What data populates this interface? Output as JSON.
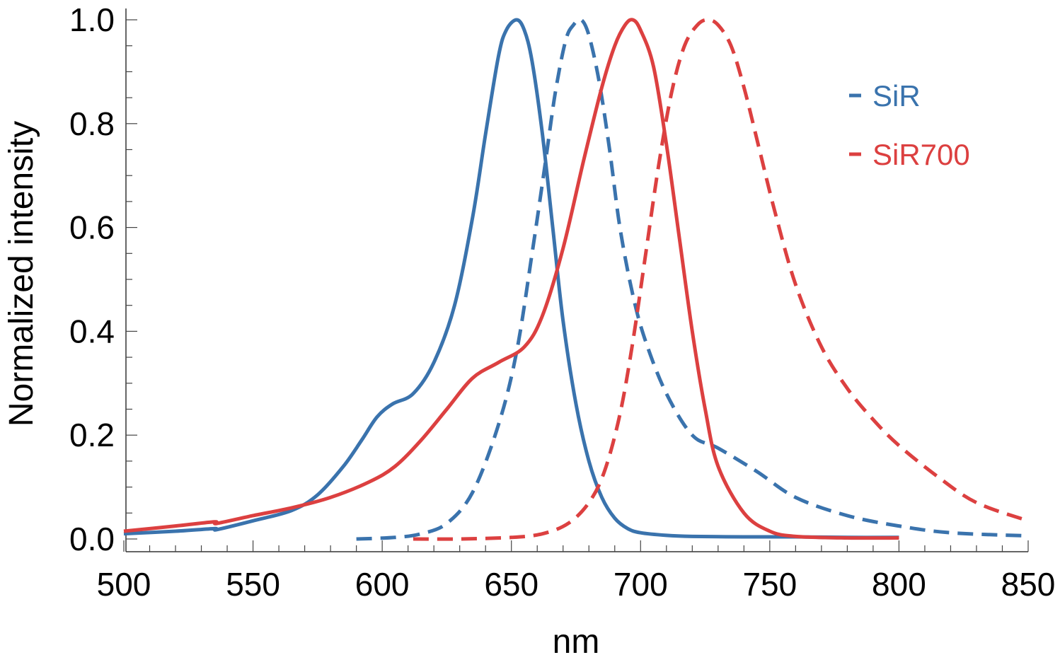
{
  "chart_data": {
    "type": "line",
    "title": "",
    "xlabel": "nm",
    "ylabel": "Normalized intensity",
    "xlim": [
      500,
      850
    ],
    "ylim": [
      0,
      1.0
    ],
    "xticks": [
      "500",
      "550",
      "600",
      "650",
      "700",
      "750",
      "800",
      "850"
    ],
    "yticks": [
      "0.0",
      "0.2",
      "0.4",
      "0.6",
      "0.8",
      "1.0"
    ],
    "grid": false,
    "legend": {
      "position": "top-right",
      "entries": [
        {
          "label": "SiR",
          "color": "#3a73ad"
        },
        {
          "label": "SiR700",
          "color": "#dc4040"
        }
      ]
    },
    "series": [
      {
        "legend_label": "SiR",
        "color": "#3a73ad",
        "dash": false,
        "x": [
          500,
          520,
          535,
          536,
          550,
          565,
          575,
          585,
          592,
          598,
          604,
          612,
          620,
          628,
          635,
          640,
          645,
          648,
          652,
          655,
          658,
          662,
          666,
          670,
          675,
          680,
          685,
          690,
          695,
          700,
          710,
          720,
          740,
          760,
          780,
          800
        ],
        "y": [
          0.01,
          0.015,
          0.02,
          0.018,
          0.035,
          0.055,
          0.085,
          0.14,
          0.19,
          0.235,
          0.26,
          0.28,
          0.34,
          0.45,
          0.62,
          0.78,
          0.93,
          0.98,
          1.0,
          0.98,
          0.92,
          0.78,
          0.6,
          0.42,
          0.26,
          0.15,
          0.08,
          0.04,
          0.02,
          0.012,
          0.007,
          0.005,
          0.004,
          0.004,
          0.003,
          0.003
        ]
      },
      {
        "legend_label": "SiR",
        "color": "#3a73ad",
        "dash": true,
        "x": [
          590,
          605,
          615,
          625,
          635,
          645,
          652,
          658,
          663,
          667,
          671,
          674,
          677,
          680,
          684,
          688,
          692,
          697,
          702,
          710,
          720,
          730,
          745,
          760,
          780,
          800,
          820,
          850
        ],
        "y": [
          0.0,
          0.003,
          0.01,
          0.03,
          0.09,
          0.22,
          0.36,
          0.55,
          0.72,
          0.86,
          0.96,
          0.99,
          1.0,
          0.97,
          0.88,
          0.75,
          0.6,
          0.47,
          0.38,
          0.28,
          0.2,
          0.175,
          0.13,
          0.08,
          0.045,
          0.025,
          0.012,
          0.006
        ]
      },
      {
        "legend_label": "SiR700",
        "color": "#dc4040",
        "dash": false,
        "x": [
          500,
          520,
          535,
          536,
          550,
          565,
          580,
          595,
          605,
          615,
          625,
          635,
          645,
          655,
          662,
          670,
          678,
          685,
          690,
          694,
          697,
          700,
          705,
          710,
          715,
          720,
          725,
          730,
          740,
          750,
          760,
          780,
          800
        ],
        "y": [
          0.015,
          0.025,
          0.033,
          0.03,
          0.045,
          0.06,
          0.08,
          0.11,
          0.14,
          0.19,
          0.25,
          0.31,
          0.34,
          0.37,
          0.43,
          0.56,
          0.73,
          0.87,
          0.95,
          0.99,
          1.0,
          0.98,
          0.91,
          0.76,
          0.58,
          0.4,
          0.25,
          0.14,
          0.05,
          0.015,
          0.005,
          0.002,
          0.002
        ]
      },
      {
        "legend_label": "SiR700",
        "color": "#dc4040",
        "dash": true,
        "x": [
          612,
          630,
          650,
          662,
          672,
          680,
          686,
          692,
          697,
          702,
          707,
          712,
          717,
          722,
          726,
          730,
          735,
          740,
          746,
          752,
          760,
          770,
          780,
          790,
          800,
          815,
          830,
          850
        ],
        "y": [
          0.0,
          0.0,
          0.003,
          0.01,
          0.03,
          0.07,
          0.13,
          0.24,
          0.38,
          0.55,
          0.72,
          0.86,
          0.95,
          0.99,
          1.0,
          0.99,
          0.95,
          0.87,
          0.75,
          0.63,
          0.49,
          0.37,
          0.29,
          0.23,
          0.18,
          0.12,
          0.07,
          0.035
        ]
      }
    ]
  }
}
